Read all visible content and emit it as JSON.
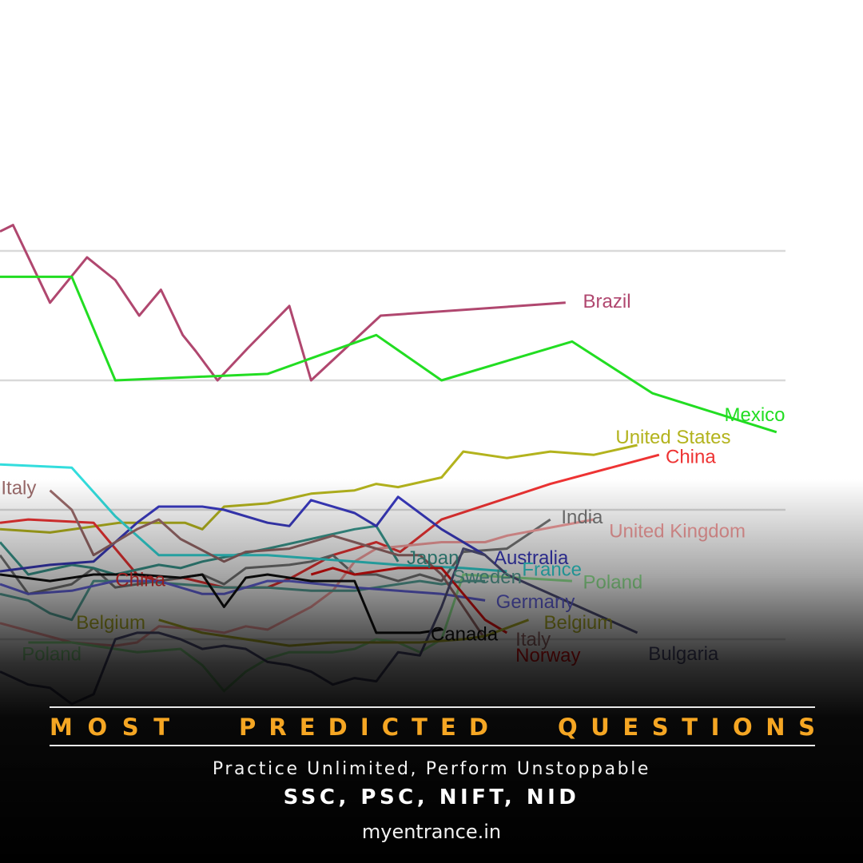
{
  "chart_data": {
    "type": "line",
    "title": "",
    "xlabel": "",
    "ylabel": "",
    "x_range": [
      0,
      36
    ],
    "y_range": [
      0,
      100
    ],
    "grid": true,
    "gridlines_y": [
      80,
      60,
      40,
      20,
      0
    ],
    "series": [
      {
        "name": "Brazil",
        "color": "#b0476f",
        "label_color": "#b0476f",
        "points": [
          [
            0,
            83
          ],
          [
            0.6,
            84
          ],
          [
            2.3,
            72
          ],
          [
            4,
            79
          ],
          [
            5.3,
            75.5
          ],
          [
            6.4,
            70
          ],
          [
            7.4,
            74
          ],
          [
            8.4,
            67
          ],
          [
            9,
            64.5
          ],
          [
            10,
            60
          ],
          [
            11.4,
            65
          ],
          [
            13.3,
            71.5
          ],
          [
            14.3,
            60
          ],
          [
            17.5,
            70
          ],
          [
            26,
            72
          ]
        ]
      },
      {
        "name": "Mexico",
        "color": "#22dd22",
        "label_color": "#22dd22",
        "points": [
          [
            0,
            76
          ],
          [
            3.3,
            76
          ],
          [
            5.3,
            60
          ],
          [
            12.3,
            61
          ],
          [
            17.3,
            67
          ],
          [
            20.3,
            60
          ],
          [
            26.3,
            66
          ],
          [
            30,
            58
          ],
          [
            35.7,
            52
          ]
        ]
      },
      {
        "name": "United States",
        "color": "#b3b31d",
        "label_color": "#b3b31d",
        "points": [
          [
            0,
            37
          ],
          [
            2.3,
            36.5
          ],
          [
            5.5,
            38
          ],
          [
            8.5,
            38
          ],
          [
            9.3,
            37
          ],
          [
            10.3,
            40.5
          ],
          [
            12.3,
            41
          ],
          [
            14.3,
            42.5
          ],
          [
            16.3,
            43
          ],
          [
            17.3,
            44
          ],
          [
            18.3,
            43.5
          ],
          [
            20.3,
            45
          ],
          [
            21.3,
            49
          ],
          [
            23.3,
            48
          ],
          [
            25.3,
            49
          ],
          [
            27.3,
            48.5
          ],
          [
            29.3,
            50
          ]
        ]
      },
      {
        "name": "China",
        "color": "#ee3333",
        "label_color": "#ee3333",
        "points": [
          [
            0,
            38
          ],
          [
            1.3,
            38.5
          ],
          [
            4.3,
            38
          ],
          [
            6.3,
            30
          ],
          [
            7.3,
            29
          ],
          [
            8.4,
            29.5
          ],
          [
            10.3,
            28
          ],
          [
            12.3,
            28
          ],
          [
            13.4,
            29.5
          ],
          [
            15.3,
            33
          ],
          [
            17.3,
            35
          ],
          [
            18.4,
            33.5
          ],
          [
            20.3,
            38.5
          ],
          [
            25.3,
            44
          ],
          [
            30.3,
            48.5
          ]
        ]
      },
      {
        "name": "India",
        "color": "#777777",
        "label_color": "#777777",
        "points": [
          [
            0,
            33
          ],
          [
            1.3,
            27
          ],
          [
            3.3,
            28.5
          ],
          [
            4.3,
            31
          ],
          [
            5.3,
            28
          ],
          [
            9.3,
            30
          ],
          [
            10.3,
            28.5
          ],
          [
            11.3,
            31
          ],
          [
            13.3,
            31.5
          ],
          [
            14.3,
            32
          ],
          [
            15.3,
            33
          ],
          [
            16.3,
            30
          ],
          [
            17.3,
            30
          ],
          [
            18.3,
            29
          ],
          [
            19.3,
            30
          ],
          [
            20.3,
            29
          ],
          [
            21.3,
            33.5
          ],
          [
            23.3,
            34
          ],
          [
            25.3,
            38.5
          ]
        ]
      },
      {
        "name": "United Kingdom",
        "color": "#f7a0a0",
        "label_color": "#f7a0a0",
        "points": [
          [
            0,
            22.5
          ],
          [
            3.3,
            19.5
          ],
          [
            5.3,
            19
          ],
          [
            6.3,
            19.5
          ],
          [
            7.3,
            22
          ],
          [
            9.3,
            21.5
          ],
          [
            10.3,
            21
          ],
          [
            11.3,
            22
          ],
          [
            12.3,
            21.5
          ],
          [
            14.3,
            25
          ],
          [
            15.3,
            27.5
          ],
          [
            16.3,
            32
          ],
          [
            17.3,
            34
          ],
          [
            20.3,
            35
          ],
          [
            22.3,
            35
          ],
          [
            23.3,
            36
          ],
          [
            27.3,
            38.5
          ]
        ]
      },
      {
        "name": "Japan",
        "color": "#3a9a90",
        "label_color": "#3a9a90",
        "points": [
          [
            0,
            35
          ],
          [
            1.3,
            30
          ],
          [
            3.3,
            31.5
          ],
          [
            4.3,
            31
          ],
          [
            5.3,
            30
          ],
          [
            7.3,
            31.5
          ],
          [
            8.3,
            31
          ],
          [
            9.3,
            32
          ],
          [
            12.3,
            34
          ],
          [
            14.3,
            35.5
          ],
          [
            16.3,
            37
          ],
          [
            17.3,
            37.5
          ],
          [
            18.3,
            32
          ]
        ]
      },
      {
        "name": "Australia",
        "color": "#3a3ac0",
        "label_color": "#3a3ac0",
        "points": [
          [
            0,
            30.5
          ],
          [
            2.3,
            31.5
          ],
          [
            4.3,
            32
          ],
          [
            6.3,
            38
          ],
          [
            7.3,
            40.5
          ],
          [
            9.3,
            40.5
          ],
          [
            10.3,
            40
          ],
          [
            12.3,
            38
          ],
          [
            13.3,
            37.5
          ],
          [
            14.3,
            41.5
          ],
          [
            16.3,
            39.5
          ],
          [
            17.3,
            37.5
          ],
          [
            18.3,
            42
          ],
          [
            20.3,
            37
          ],
          [
            22.3,
            33
          ]
        ]
      },
      {
        "name": "France",
        "color": "#33dddd",
        "label_color": "#33dddd",
        "points": [
          [
            0,
            47
          ],
          [
            3.3,
            46.5
          ],
          [
            5.3,
            39
          ],
          [
            7.3,
            33
          ],
          [
            12.3,
            33
          ],
          [
            14.3,
            32.5
          ],
          [
            16.3,
            32
          ],
          [
            18.3,
            31.5
          ],
          [
            21.3,
            31
          ],
          [
            23.3,
            30.5
          ]
        ]
      },
      {
        "name": "Sweden",
        "color": "#5aaaa0",
        "label_color": "#5aaaa0",
        "points": [
          [
            0,
            27
          ],
          [
            1.3,
            26
          ],
          [
            2.3,
            24
          ],
          [
            3.3,
            23
          ],
          [
            4.3,
            29
          ],
          [
            6.3,
            29
          ],
          [
            8.3,
            28.5
          ],
          [
            10.3,
            28
          ],
          [
            12.3,
            28
          ],
          [
            14.3,
            27.5
          ],
          [
            16.3,
            27.5
          ],
          [
            18.3,
            28.5
          ],
          [
            19.3,
            29
          ],
          [
            20.3,
            28.5
          ],
          [
            21.3,
            29
          ],
          [
            22.3,
            29
          ]
        ]
      },
      {
        "name": "Poland",
        "color": "#99f099",
        "label_color": "#99f099",
        "points": [
          [
            1.3,
            19.5
          ],
          [
            3.3,
            19.5
          ],
          [
            5.3,
            18.5
          ],
          [
            6.3,
            18
          ],
          [
            8.3,
            18.5
          ],
          [
            9.3,
            16
          ],
          [
            10.3,
            12
          ],
          [
            11.3,
            15
          ],
          [
            12.3,
            17
          ],
          [
            13.3,
            18
          ],
          [
            14.3,
            18
          ],
          [
            15.3,
            18
          ],
          [
            16.3,
            18.5
          ],
          [
            17.3,
            20
          ],
          [
            18.3,
            19.5
          ],
          [
            19.3,
            18
          ],
          [
            20.3,
            20
          ],
          [
            21.3,
            30
          ],
          [
            26.3,
            29
          ]
        ]
      },
      {
        "name": "Germany",
        "color": "#6868e8",
        "label_color": "#6868e8",
        "points": [
          [
            0,
            28.5
          ],
          [
            1.3,
            27
          ],
          [
            3.3,
            27.5
          ],
          [
            5.3,
            29
          ],
          [
            7.3,
            29
          ],
          [
            9.3,
            27
          ],
          [
            10.3,
            27
          ],
          [
            12.3,
            29
          ],
          [
            13.3,
            29
          ],
          [
            16.3,
            28
          ],
          [
            18.3,
            27.5
          ],
          [
            20.3,
            27
          ],
          [
            22.3,
            26
          ]
        ]
      },
      {
        "name": "Canada",
        "color": "#111111",
        "label_color": "#111111",
        "points": [
          [
            0,
            30
          ],
          [
            2.3,
            29
          ],
          [
            4.3,
            30
          ],
          [
            6.3,
            30
          ],
          [
            8.3,
            29.5
          ],
          [
            9.3,
            30
          ],
          [
            10.3,
            25
          ],
          [
            11.3,
            29.5
          ],
          [
            12.3,
            30
          ],
          [
            14.3,
            29
          ],
          [
            16.3,
            29
          ],
          [
            17.3,
            21
          ],
          [
            19.3,
            21
          ],
          [
            20.3,
            21.5
          ]
        ]
      },
      {
        "name": "Italy",
        "color": "#9a6a6a",
        "label_color": "#9a6a6a",
        "points": [
          [
            2.3,
            43
          ],
          [
            3.3,
            40
          ],
          [
            4.3,
            33
          ],
          [
            5.3,
            35
          ],
          [
            6.3,
            37
          ],
          [
            7.3,
            38.5
          ],
          [
            8.3,
            35.5
          ],
          [
            10.3,
            32
          ],
          [
            11.3,
            33.5
          ],
          [
            13.3,
            34
          ],
          [
            15.3,
            36
          ],
          [
            16.3,
            35
          ],
          [
            18.3,
            33
          ],
          [
            19.3,
            33
          ],
          [
            20.3,
            30
          ],
          [
            22.3,
            20
          ]
        ]
      },
      {
        "name": "Norway",
        "color": "#ee1111",
        "label_color": "#ee1111",
        "points": [
          [
            14.3,
            30
          ],
          [
            15.3,
            31
          ],
          [
            16.3,
            30
          ],
          [
            18.3,
            31
          ],
          [
            20.3,
            31
          ],
          [
            21.3,
            27
          ],
          [
            22.3,
            23
          ],
          [
            23.3,
            21
          ]
        ]
      },
      {
        "name": "Bulgaria",
        "color": "#555580",
        "label_color": "#555580",
        "points": [
          [
            0,
            15
          ],
          [
            1.3,
            13
          ],
          [
            2.3,
            12.5
          ],
          [
            3.3,
            10
          ],
          [
            4.3,
            11.5
          ],
          [
            5.3,
            20
          ],
          [
            6.3,
            21
          ],
          [
            7.3,
            21
          ],
          [
            8.3,
            20
          ],
          [
            9.3,
            18.5
          ],
          [
            10.3,
            19
          ],
          [
            11.3,
            18.5
          ],
          [
            12.3,
            16.5
          ],
          [
            13.3,
            16
          ],
          [
            14.3,
            15
          ],
          [
            15.3,
            13
          ],
          [
            16.3,
            14
          ],
          [
            17.3,
            13.5
          ],
          [
            18.3,
            18
          ],
          [
            19.3,
            17.5
          ],
          [
            20.3,
            25
          ],
          [
            21.3,
            34
          ],
          [
            22.3,
            33
          ],
          [
            23.3,
            30
          ],
          [
            29.3,
            21
          ]
        ]
      },
      {
        "name": "Belgium",
        "color": "#b0b028",
        "label_color": "#b0b028",
        "points": [
          [
            7.3,
            23
          ],
          [
            9.3,
            21
          ],
          [
            11.3,
            20
          ],
          [
            13.3,
            19
          ],
          [
            15.3,
            19.5
          ],
          [
            17.3,
            19.5
          ],
          [
            19.3,
            19.5
          ],
          [
            21.3,
            20
          ],
          [
            22.3,
            20.5
          ],
          [
            24.3,
            23
          ]
        ]
      }
    ],
    "labels": [
      {
        "text": "Brazil",
        "series": "Brazil",
        "x": 26.8,
        "y": 72
      },
      {
        "text": "Mexico",
        "series": "Mexico",
        "x": 33.3,
        "y": 54.5
      },
      {
        "text": "United States",
        "series": "United States",
        "x": 28.3,
        "y": 51
      },
      {
        "text": "China",
        "series": "China",
        "x": 30.6,
        "y": 48
      },
      {
        "text": "Italy",
        "series": "Italy",
        "x": 0.05,
        "y": 43.2
      },
      {
        "text": "India",
        "series": "India",
        "x": 25.8,
        "y": 38.7
      },
      {
        "text": "United Kingdom",
        "series": "United Kingdom",
        "x": 28,
        "y": 36.5
      },
      {
        "text": "Japan",
        "series": "Japan",
        "x": 18.7,
        "y": 32.4
      },
      {
        "text": "Australia",
        "series": "Australia",
        "x": 22.7,
        "y": 32.4
      },
      {
        "text": "France",
        "series": "France",
        "x": 24,
        "y": 30.6
      },
      {
        "text": "China",
        "series": "China",
        "x": 5.3,
        "y": 29
      },
      {
        "text": "Sweden",
        "series": "Sweden",
        "x": 20.8,
        "y": 29.4
      },
      {
        "text": "Poland",
        "series": "Poland",
        "x": 26.8,
        "y": 28.6
      },
      {
        "text": "Germany",
        "series": "Germany",
        "x": 22.8,
        "y": 25.6
      },
      {
        "text": "Belgium",
        "series": "Belgium",
        "x": 3.5,
        "y": 22.4
      },
      {
        "text": "Belgium",
        "series": "Belgium",
        "x": 25,
        "y": 22.4
      },
      {
        "text": "Canada",
        "series": "Canada",
        "x": 19.8,
        "y": 20.6
      },
      {
        "text": "Italy",
        "series": "Italy",
        "x": 23.7,
        "y": 19.8
      },
      {
        "text": "Poland",
        "series": "Poland",
        "x": 1,
        "y": 17.5
      },
      {
        "text": "Bulgaria",
        "series": "Bulgaria",
        "x": 29.8,
        "y": 17.6
      },
      {
        "text": "Norway",
        "series": "Norway",
        "x": 23.7,
        "y": 17.3
      }
    ]
  },
  "banner": {
    "heading": [
      "MOST",
      "PREDICTED",
      "QUESTIONS"
    ],
    "tagline": "Practice Unlimited, Perform Unstoppable",
    "exams": "SSC, PSC, NIFT, NID",
    "site": "myentrance.in"
  }
}
